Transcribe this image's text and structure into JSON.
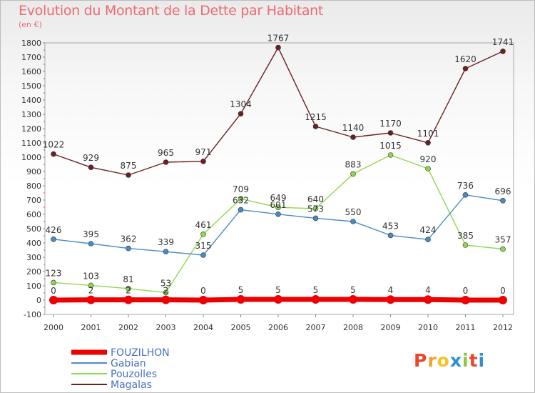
{
  "title": "Evolution du Montant de la Dette par Habitant",
  "subtitle": "(en €)",
  "logo": {
    "text": "Proxiti",
    "colors": [
      "#e8472e",
      "#f3a02c",
      "#f3c424",
      "#2e8fd6",
      "#8ec63f",
      "#e8472e",
      "#2e8fd6"
    ]
  },
  "chart_data": {
    "type": "line",
    "title": "Evolution du Montant de la Dette par Habitant",
    "subtitle": "(en €)",
    "categories": [
      "2000",
      "2001",
      "2002",
      "2003",
      "2004",
      "2005",
      "2006",
      "2007",
      "2008",
      "2009",
      "2010",
      "2011",
      "2012"
    ],
    "ylim": [
      -100,
      1800
    ],
    "yticks": [
      -100,
      0,
      100,
      200,
      300,
      400,
      500,
      600,
      700,
      800,
      900,
      1000,
      1100,
      1200,
      1300,
      1400,
      1500,
      1600,
      1700,
      1800
    ],
    "grid": false,
    "legend_position": "bottom-left",
    "series": [
      {
        "name": "FOUZILHON",
        "color": "#ee0000",
        "values": [
          0,
          2,
          2,
          2,
          0,
          5,
          5,
          5,
          5,
          4,
          4,
          0,
          0
        ]
      },
      {
        "name": "Gabian",
        "color": "#4a8bc5",
        "values": [
          426,
          395,
          362,
          339,
          315,
          632,
          601,
          573,
          550,
          453,
          424,
          736,
          696
        ]
      },
      {
        "name": "Pouzolles",
        "color": "#8ed84f",
        "values": [
          123,
          103,
          81,
          53,
          461,
          709,
          649,
          640,
          883,
          1015,
          920,
          385,
          357
        ]
      },
      {
        "name": "Magalas",
        "color": "#6b1f1f",
        "values": [
          1022,
          929,
          875,
          965,
          971,
          1304,
          1767,
          1215,
          1140,
          1170,
          1101,
          1620,
          1741
        ]
      }
    ]
  }
}
